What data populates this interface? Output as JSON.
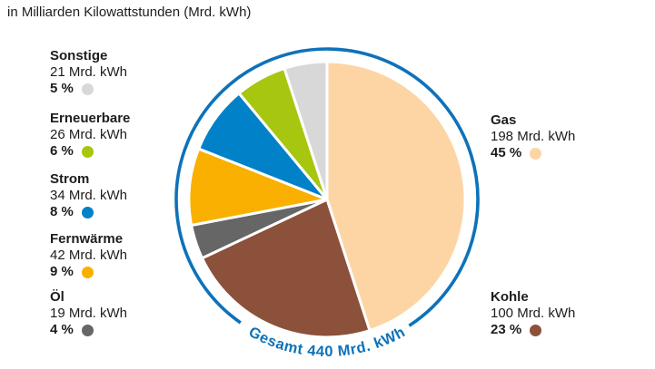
{
  "title": "in Milliarden Kilowattstunden (Mrd. kWh)",
  "chart_data": {
    "type": "pie",
    "title": "in Milliarden Kilowattstunden (Mrd. kWh)",
    "unit": "Mrd. kWh",
    "total": 440,
    "total_label": "Gesamt 440 Mrd. kWh",
    "start_angle_deg": 0,
    "direction": "clockwise",
    "ring_color": "#0d72b9",
    "slice_gap_color": "#ffffff",
    "slices": [
      {
        "label": "Gas",
        "value": 198,
        "percent": 45,
        "color": "#fdd5a4"
      },
      {
        "label": "Kohle",
        "value": 100,
        "percent": 23,
        "color": "#8b513b"
      },
      {
        "label": "Öl",
        "value": 19,
        "percent": 4,
        "color": "#666666"
      },
      {
        "label": "Fernwärme",
        "value": 42,
        "percent": 9,
        "color": "#fab000"
      },
      {
        "label": "Strom",
        "value": 34,
        "percent": 8,
        "color": "#0081c8"
      },
      {
        "label": "Erneuerbare",
        "value": 26,
        "percent": 6,
        "color": "#a7c60f"
      },
      {
        "label": "Sonstige",
        "value": 21,
        "percent": 5,
        "color": "#d8d8d8"
      }
    ]
  },
  "legend": {
    "left": [
      {
        "label": "Sonstige",
        "value": "21 Mrd. kWh",
        "pct": "5 %",
        "color": "#d8d8d8"
      },
      {
        "label": "Erneuerbare",
        "value": "26 Mrd. kWh",
        "pct": "6 %",
        "color": "#a7c60f"
      },
      {
        "label": "Strom",
        "value": "34 Mrd. kWh",
        "pct": "8 %",
        "color": "#0081c8"
      },
      {
        "label": "Fernwärme",
        "value": "42 Mrd. kWh",
        "pct": "9 %",
        "color": "#fab000"
      },
      {
        "label": "Öl",
        "value": "19 Mrd. kWh",
        "pct": "4 %",
        "color": "#666666"
      }
    ],
    "right": [
      {
        "label": "Gas",
        "value": "198 Mrd. kWh",
        "pct": "45 %",
        "color": "#fdd5a4"
      },
      {
        "label": "Kohle",
        "value": "100 Mrd. kWh",
        "pct": "23 %",
        "color": "#8b513b"
      }
    ]
  }
}
